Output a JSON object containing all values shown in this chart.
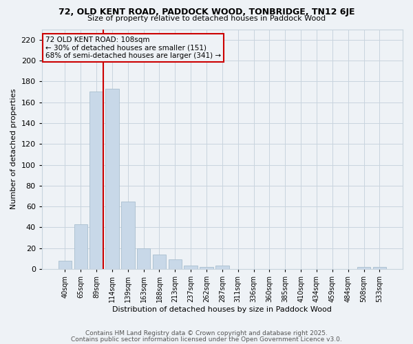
{
  "title1": "72, OLD KENT ROAD, PADDOCK WOOD, TONBRIDGE, TN12 6JE",
  "title2": "Size of property relative to detached houses in Paddock Wood",
  "xlabel": "Distribution of detached houses by size in Paddock Wood",
  "ylabel": "Number of detached properties",
  "categories": [
    "40sqm",
    "65sqm",
    "89sqm",
    "114sqm",
    "139sqm",
    "163sqm",
    "188sqm",
    "213sqm",
    "237sqm",
    "262sqm",
    "287sqm",
    "311sqm",
    "336sqm",
    "360sqm",
    "385sqm",
    "410sqm",
    "434sqm",
    "459sqm",
    "484sqm",
    "508sqm",
    "533sqm"
  ],
  "values": [
    8,
    43,
    170,
    173,
    65,
    20,
    14,
    9,
    3,
    2,
    3,
    0,
    0,
    0,
    0,
    0,
    0,
    0,
    0,
    2,
    2
  ],
  "bar_color": "#c8d8e8",
  "bar_edge_color": "#a8bece",
  "property_line_color": "#cc0000",
  "annotation_line1": "72 OLD KENT ROAD: 108sqm",
  "annotation_line2": "← 30% of detached houses are smaller (151)",
  "annotation_line3": "68% of semi-detached houses are larger (341) →",
  "ylim": [
    0,
    230
  ],
  "yticks": [
    0,
    20,
    40,
    60,
    80,
    100,
    120,
    140,
    160,
    180,
    200,
    220
  ],
  "grid_color": "#c8d4de",
  "footer1": "Contains HM Land Registry data © Crown copyright and database right 2025.",
  "footer2": "Contains public sector information licensed under the Open Government Licence v3.0.",
  "bg_color": "#eef2f6"
}
